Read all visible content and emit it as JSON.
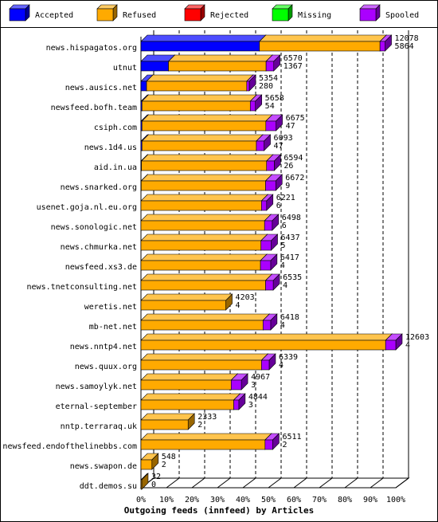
{
  "chart_data": {
    "type": "bar3d-horizontal-stacked",
    "x_label": "Outgoing feeds (innfeed) by Articles",
    "categories": [
      "news.hispagatos.org",
      "utnut",
      "news.ausics.net",
      "newsfeed.bofh.team",
      "csiph.com",
      "news.1d4.us",
      "aid.in.ua",
      "news.snarked.org",
      "usenet.goja.nl.eu.org",
      "news.sonologic.net",
      "news.chmurka.net",
      "newsfeed.xs3.de",
      "news.tnetconsulting.net",
      "weretis.net",
      "mb-net.net",
      "news.nntp4.net",
      "news.quux.org",
      "news.samoylyk.net",
      "eternal-september",
      "nntp.terraraq.uk",
      "newsfeed.endofthelinebbs.com",
      "news.swapon.de",
      "ddt.demos.su"
    ],
    "offered": [
      12078,
      6570,
      5354,
      5658,
      6675,
      6093,
      6594,
      6672,
      6221,
      6498,
      6437,
      6417,
      6535,
      4203,
      6418,
      12603,
      6339,
      4967,
      4844,
      2333,
      6511,
      548,
      32
    ],
    "accepted": [
      5864,
      1367,
      280,
      54,
      47,
      47,
      26,
      9,
      6,
      6,
      5,
      4,
      4,
      4,
      4,
      4,
      4,
      3,
      3,
      2,
      2,
      2,
      0
    ],
    "series": [
      {
        "name": "Accepted",
        "color": "#0000ff",
        "values": [
          46.5,
          10.8,
          2.2,
          0.4,
          0.4,
          0.4,
          0.2,
          0.1,
          0,
          0,
          0,
          0,
          0,
          0,
          0,
          0,
          0,
          0,
          0,
          0,
          0,
          0,
          0
        ]
      },
      {
        "name": "Refused",
        "color": "#ffaa00",
        "values": [
          47.3,
          38.3,
          39.3,
          42.5,
          48.6,
          44.9,
          49.1,
          48.8,
          47.3,
          48.5,
          47.1,
          46.9,
          48.9,
          33.3,
          47.9,
          96,
          47.3,
          35.4,
          36.4,
          18.5,
          48.7,
          4.3,
          0.3
        ]
      },
      {
        "name": "Rejected",
        "color": "#ff0000",
        "values": [
          0,
          0,
          0,
          0,
          0,
          0,
          0,
          0,
          0,
          0,
          0,
          0,
          0,
          0,
          0,
          0,
          0,
          0,
          0,
          0,
          0,
          0,
          0
        ]
      },
      {
        "name": "Missing",
        "color": "#00ff00",
        "values": [
          0,
          0,
          0,
          0,
          0,
          0,
          0,
          0,
          0,
          0,
          0,
          0,
          0,
          0,
          0,
          0,
          0,
          0,
          0,
          0,
          0,
          0,
          0
        ]
      },
      {
        "name": "Spooled",
        "color": "#aa00ff",
        "values": [
          2,
          3,
          1,
          2,
          4,
          3,
          3,
          4,
          2,
          3,
          4,
          4,
          3,
          0,
          3,
          4,
          3,
          4,
          2,
          0,
          3,
          0,
          0
        ]
      }
    ],
    "xlim": [
      0,
      100
    ],
    "xticks": [
      {
        "value": 0,
        "label": "0%"
      },
      {
        "value": 10,
        "label": "10%"
      },
      {
        "value": 20,
        "label": "20%"
      },
      {
        "value": 30,
        "label": "30%"
      },
      {
        "value": 40,
        "label": "40%"
      },
      {
        "value": 50,
        "label": "50%"
      },
      {
        "value": 60,
        "label": "60%"
      },
      {
        "value": 70,
        "label": "70%"
      },
      {
        "value": 80,
        "label": "80%"
      },
      {
        "value": 90,
        "label": "90%"
      },
      {
        "value": 100,
        "label": "100%"
      }
    ],
    "grid": true
  }
}
